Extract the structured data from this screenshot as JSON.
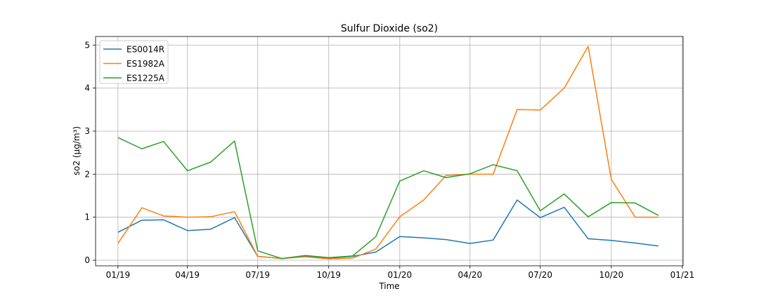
{
  "chart_data": {
    "type": "line",
    "title": "Sulfur Dioxide (so2)",
    "xlabel": "Time",
    "ylabel": "so2 (µg/m³)",
    "x": [
      "2019-01-01",
      "2019-02-01",
      "2019-03-01",
      "2019-04-01",
      "2019-05-01",
      "2019-06-01",
      "2019-07-01",
      "2019-08-01",
      "2019-09-01",
      "2019-10-01",
      "2019-11-01",
      "2019-12-01",
      "2020-01-01",
      "2020-02-01",
      "2020-03-01",
      "2020-04-01",
      "2020-05-01",
      "2020-06-01",
      "2020-07-01",
      "2020-08-01",
      "2020-09-01",
      "2020-10-01",
      "2020-11-01",
      "2020-12-01"
    ],
    "xlim": [
      "2018-12-03",
      "2021-01-02"
    ],
    "xticks": [
      {
        "date": "2019-01-01",
        "label": "01/19"
      },
      {
        "date": "2019-04-01",
        "label": "04/19"
      },
      {
        "date": "2019-07-01",
        "label": "07/19"
      },
      {
        "date": "2019-10-01",
        "label": "10/19"
      },
      {
        "date": "2020-01-01",
        "label": "01/20"
      },
      {
        "date": "2020-04-01",
        "label": "04/20"
      },
      {
        "date": "2020-07-01",
        "label": "07/20"
      },
      {
        "date": "2020-10-01",
        "label": "10/20"
      },
      {
        "date": "2021-01-01",
        "label": "01/21"
      }
    ],
    "ylim": [
      -0.13,
      5.2
    ],
    "yticks": [
      0,
      1,
      2,
      3,
      4,
      5
    ],
    "grid": true,
    "legend_position": "top-left",
    "series": [
      {
        "name": "ES0014R",
        "color": "#1f77b4",
        "values": [
          0.65,
          0.93,
          0.94,
          0.69,
          0.72,
          0.99,
          0.09,
          0.04,
          0.09,
          0.05,
          0.09,
          0.19,
          0.55,
          0.52,
          0.48,
          0.39,
          0.47,
          1.4,
          0.99,
          1.23,
          0.5,
          0.46,
          0.4,
          0.33
        ]
      },
      {
        "name": "ES1982A",
        "color": "#ff7f0e",
        "values": [
          0.39,
          1.22,
          1.03,
          1.0,
          1.01,
          1.13,
          0.09,
          0.04,
          0.08,
          0.03,
          0.05,
          0.26,
          1.01,
          1.4,
          1.97,
          2.0,
          2.0,
          3.5,
          3.49,
          4.0,
          4.97,
          1.88,
          1.0,
          1.0
        ]
      },
      {
        "name": "ES1225A",
        "color": "#2ca02c",
        "values": [
          2.85,
          2.59,
          2.76,
          2.08,
          2.28,
          2.77,
          0.22,
          0.04,
          0.11,
          0.06,
          0.1,
          0.55,
          1.84,
          2.08,
          1.92,
          2.01,
          2.22,
          2.08,
          1.15,
          1.54,
          1.01,
          1.34,
          1.33,
          1.04
        ]
      }
    ]
  }
}
